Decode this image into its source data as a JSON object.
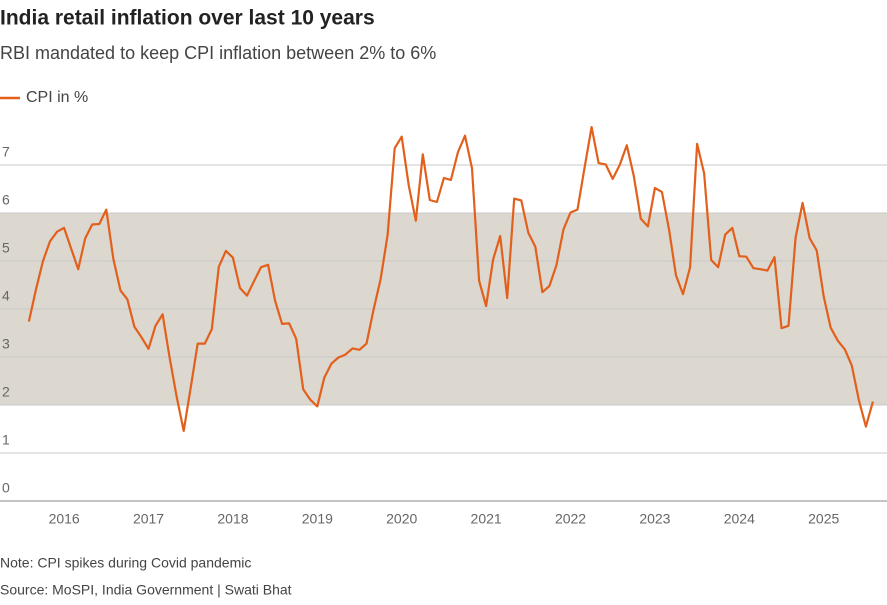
{
  "chart_data": {
    "type": "line",
    "title": "India retail inflation over last 10 years",
    "subtitle": "RBI mandated to keep CPI inflation between 2% to 6%",
    "note": "Note: CPI spikes during Covid pandemic",
    "source": "Source: MoSPI, India Government | Swati Bhat",
    "x": [
      2015.583,
      2015.667,
      2015.75,
      2015.833,
      2015.917,
      2016,
      2016.083,
      2016.167,
      2016.25,
      2016.333,
      2016.417,
      2016.5,
      2016.583,
      2016.667,
      2016.75,
      2016.833,
      2016.917,
      2017,
      2017.083,
      2017.167,
      2017.25,
      2017.333,
      2017.417,
      2017.5,
      2017.583,
      2017.667,
      2017.75,
      2017.833,
      2017.917,
      2018,
      2018.083,
      2018.167,
      2018.25,
      2018.333,
      2018.417,
      2018.5,
      2018.583,
      2018.667,
      2018.75,
      2018.833,
      2018.917,
      2019,
      2019.083,
      2019.167,
      2019.25,
      2019.333,
      2019.417,
      2019.5,
      2019.583,
      2019.667,
      2019.75,
      2019.833,
      2019.917,
      2020,
      2020.083,
      2020.167,
      2020.25,
      2020.333,
      2020.417,
      2020.5,
      2020.583,
      2020.667,
      2020.75,
      2020.833,
      2020.917,
      2021,
      2021.083,
      2021.167,
      2021.25,
      2021.333,
      2021.417,
      2021.5,
      2021.583,
      2021.667,
      2021.75,
      2021.833,
      2021.917,
      2022,
      2022.083,
      2022.167,
      2022.25,
      2022.333,
      2022.417,
      2022.5,
      2022.583,
      2022.667,
      2022.75,
      2022.833,
      2022.917,
      2023,
      2023.083,
      2023.167,
      2023.25,
      2023.333,
      2023.417,
      2023.5,
      2023.583,
      2023.667,
      2023.75,
      2023.833,
      2023.917,
      2024,
      2024.083,
      2024.167,
      2024.25,
      2024.333,
      2024.417,
      2024.5,
      2024.583,
      2024.667,
      2024.75,
      2024.833,
      2024.917,
      2025,
      2025.083,
      2025.167,
      2025.25,
      2025.333,
      2025.417,
      2025.5,
      2025.583
    ],
    "series": [
      {
        "name": "CPI in %",
        "color": "#e2601c",
        "values": [
          3.74,
          4.41,
          5.0,
          5.41,
          5.61,
          5.69,
          5.26,
          4.83,
          5.47,
          5.76,
          5.77,
          6.07,
          5.05,
          4.39,
          4.2,
          3.63,
          3.41,
          3.17,
          3.65,
          3.89,
          2.99,
          2.18,
          1.46,
          2.36,
          3.28,
          3.28,
          3.58,
          4.88,
          5.21,
          5.07,
          4.44,
          4.28,
          4.58,
          4.87,
          4.92,
          4.17,
          3.69,
          3.7,
          3.38,
          2.33,
          2.11,
          1.97,
          2.57,
          2.86,
          2.99,
          3.05,
          3.18,
          3.15,
          3.28,
          3.99,
          4.62,
          5.54,
          7.35,
          7.59,
          6.58,
          5.84,
          7.22,
          6.27,
          6.23,
          6.73,
          6.69,
          7.27,
          7.61,
          6.93,
          4.59,
          4.06,
          5.03,
          5.52,
          4.23,
          6.3,
          6.26,
          5.59,
          5.3,
          4.35,
          4.48,
          4.91,
          5.66,
          6.01,
          6.07,
          6.95,
          7.79,
          7.04,
          7.01,
          6.71,
          7.0,
          7.41,
          6.77,
          5.88,
          5.72,
          6.52,
          6.44,
          5.66,
          4.7,
          4.31,
          4.87,
          7.44,
          6.83,
          5.02,
          4.87,
          5.55,
          5.69,
          5.1,
          5.09,
          4.85,
          4.83,
          4.8,
          5.08,
          3.6,
          3.65,
          5.49,
          6.21,
          5.48,
          5.22,
          4.26,
          3.61,
          3.34,
          3.16,
          2.82,
          2.1,
          1.55,
          2.07
        ]
      }
    ],
    "band": {
      "from": 2,
      "to": 6,
      "color": "#dcd7cf"
    },
    "xlim": [
      2015.24,
      2025.75
    ],
    "xticks": [
      2016,
      2017,
      2018,
      2019,
      2020,
      2021,
      2022,
      2023,
      2024,
      2025
    ],
    "ylim": [
      0,
      8
    ],
    "yticks": [
      0,
      1,
      2,
      3,
      4,
      5,
      6,
      7
    ],
    "grid": true
  }
}
